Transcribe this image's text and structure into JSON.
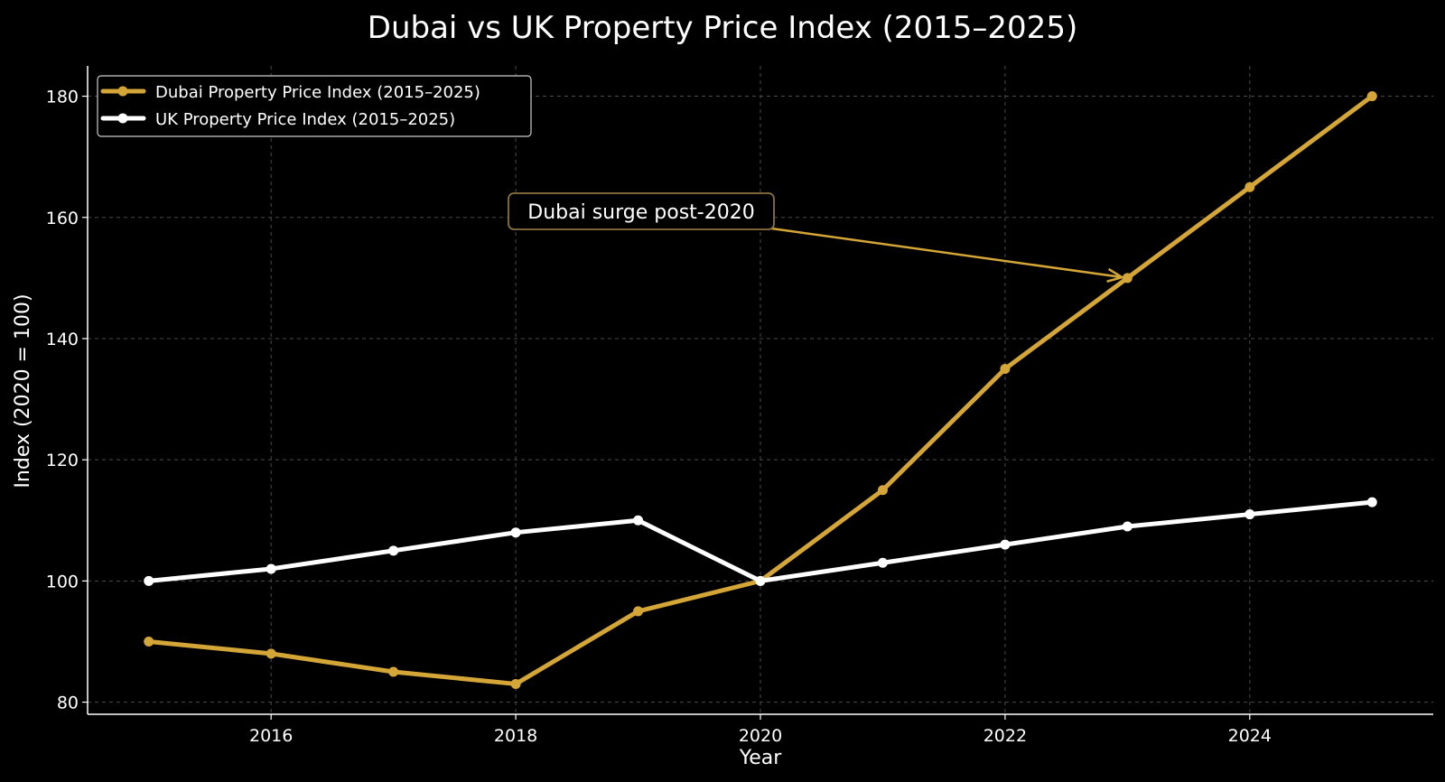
{
  "chart_data": {
    "type": "line",
    "title": "Dubai vs UK Property Price Index (2015–2025)",
    "xlabel": "Year",
    "ylabel": "Index (2020 = 100)",
    "x": [
      2015,
      2016,
      2017,
      2018,
      2019,
      2020,
      2021,
      2022,
      2023,
      2024,
      2025
    ],
    "xlim": [
      2014.5,
      2025.5
    ],
    "ylim": [
      78,
      185
    ],
    "xticks": [
      2016,
      2018,
      2020,
      2022,
      2024
    ],
    "yticks": [
      80,
      100,
      120,
      140,
      160,
      180
    ],
    "grid": true,
    "legend_position": "top-left",
    "series": [
      {
        "name": "Dubai Property Price Index (2015–2025)",
        "color": "#d4a537",
        "values": [
          90,
          88,
          85,
          83,
          95,
          100,
          115,
          135,
          150,
          165,
          180
        ]
      },
      {
        "name": "UK Property Price Index (2015–2025)",
        "color": "#ffffff",
        "values": [
          100,
          102,
          105,
          108,
          110,
          100,
          103,
          106,
          109,
          111,
          113
        ]
      }
    ],
    "annotations": [
      {
        "text": "Dubai surge post-2020",
        "target_x": 2023,
        "target_y": 150,
        "color": "#d4a537"
      }
    ]
  }
}
